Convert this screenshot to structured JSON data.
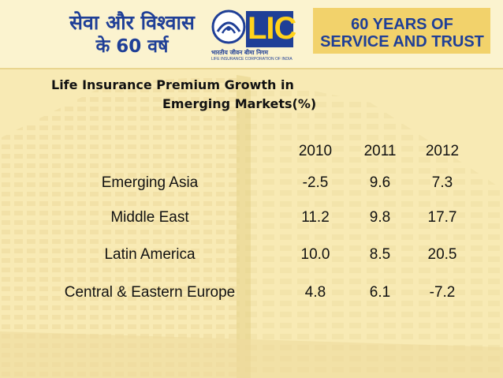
{
  "header": {
    "hindi_line1": "सेवा और विश्वास",
    "hindi_line2": "के 60 वर्ष",
    "logo_text": "LIC",
    "logo_hindi": "भारतीय जीवन बीमा निगम",
    "logo_subtitle": "LIFE INSURANCE CORPORATION OF INDIA",
    "anniversary_line1": "60 YEARS OF",
    "anniversary_line2": "SERVICE AND TRUST"
  },
  "colors": {
    "brand_blue": "#1f3f97",
    "brand_yellow": "#ffd21a",
    "background": "#f8eab4"
  },
  "chart_data": {
    "type": "table",
    "title_line1": "Life Insurance Premium Growth in",
    "title_line2": "Emerging Markets(%)",
    "columns": [
      "2010",
      "2011",
      "2012"
    ],
    "rows": [
      {
        "label": "Emerging Asia",
        "values": [
          "-2.5",
          "9.6",
          "7.3"
        ]
      },
      {
        "label": "Middle East",
        "values": [
          "11.2",
          "9.8",
          "17.7"
        ]
      },
      {
        "label": "Latin America",
        "values": [
          "10.0",
          "8.5",
          "20.5"
        ]
      },
      {
        "label": "Central & Eastern Europe",
        "values": [
          "4.8",
          "6.1",
          "-7.2"
        ]
      }
    ]
  }
}
